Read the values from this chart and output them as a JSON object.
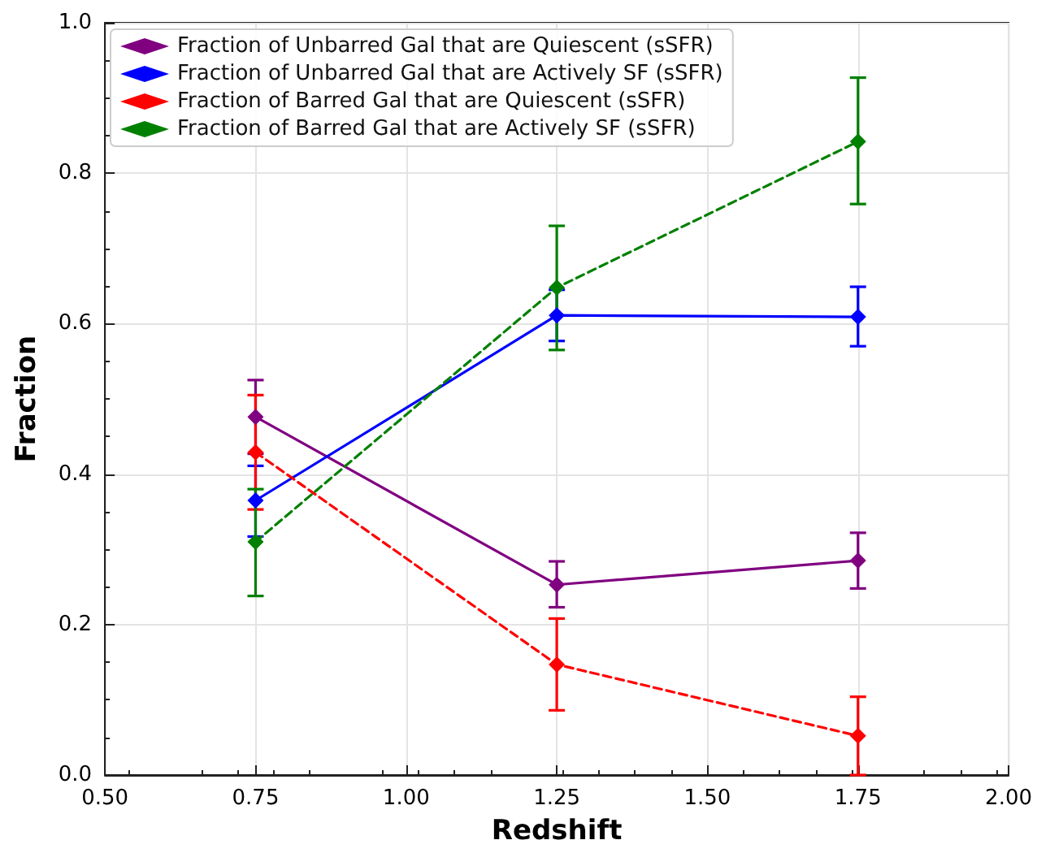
{
  "chart_data": {
    "type": "line",
    "xlabel": "Redshift",
    "ylabel": "Fraction",
    "x": [
      0.75,
      1.25,
      1.75
    ],
    "series": [
      {
        "name": "Fraction of Unbarred Gal that are Quiescent (sSFR)",
        "color": "#800080",
        "line_style": "solid",
        "values": [
          0.476,
          0.253,
          0.285
        ],
        "errors": [
          [
            0.427,
            0.525
          ],
          [
            0.223,
            0.284
          ],
          [
            0.248,
            0.322
          ]
        ]
      },
      {
        "name": "Fraction of Unbarred Gal that are Actively SF (sSFR)",
        "color": "#0000ff",
        "line_style": "solid",
        "values": [
          0.365,
          0.611,
          0.609
        ],
        "errors": [
          [
            0.317,
            0.411
          ],
          [
            0.577,
            0.645
          ],
          [
            0.57,
            0.649
          ]
        ]
      },
      {
        "name": "Fraction of Barred Gal that are Quiescent (sSFR)",
        "color": "#ff0000",
        "line_style": "dashed",
        "values": [
          0.429,
          0.147,
          0.052
        ],
        "errors": [
          [
            0.353,
            0.505
          ],
          [
            0.086,
            0.208
          ],
          [
            0.0,
            0.104
          ]
        ]
      },
      {
        "name": "Fraction of Barred Gal that are Actively SF (sSFR)",
        "color": "#008000",
        "line_style": "dashed",
        "values": [
          0.31,
          0.648,
          0.842
        ],
        "errors": [
          [
            0.238,
            0.38
          ],
          [
            0.565,
            0.73
          ],
          [
            0.759,
            0.927
          ]
        ]
      }
    ],
    "marker": "diamond",
    "grid": true,
    "legend": "top left",
    "xlim": [
      0.5,
      2.0
    ],
    "xticks": [
      {
        "value": 0.5,
        "label": "0.50"
      },
      {
        "value": 0.75,
        "label": "0.75"
      },
      {
        "value": 1.0,
        "label": "1.00"
      },
      {
        "value": 1.25,
        "label": "1.25"
      },
      {
        "value": 1.5,
        "label": "1.50"
      },
      {
        "value": 1.75,
        "label": "1.75"
      },
      {
        "value": 2.0,
        "label": "2.00"
      }
    ],
    "ylim": [
      0,
      1
    ],
    "yticks": [
      {
        "value": 0,
        "label": "0.0"
      },
      {
        "value": 0.2,
        "label": "0.2"
      },
      {
        "value": 0.4,
        "label": "0.4"
      },
      {
        "value": 0.6,
        "label": "0.6"
      },
      {
        "value": 0.8,
        "label": "0.8"
      },
      {
        "value": 1.0,
        "label": "1.0"
      }
    ]
  }
}
